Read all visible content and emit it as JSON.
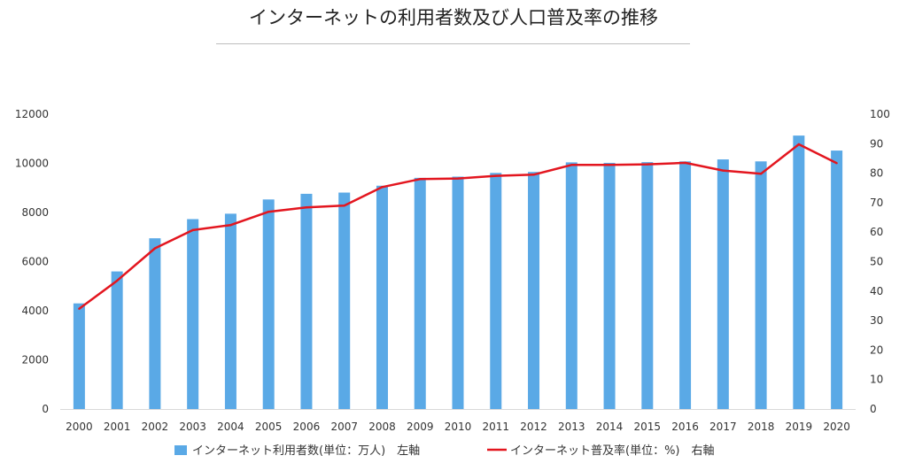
{
  "chart_data": {
    "type": "bar",
    "title": "インターネットの利用者数及び人口普及率の推移",
    "categories": [
      "2000",
      "2001",
      "2002",
      "2003",
      "2004",
      "2005",
      "2006",
      "2007",
      "2008",
      "2009",
      "2010",
      "2011",
      "2012",
      "2013",
      "2014",
      "2015",
      "2016",
      "2017",
      "2018",
      "2019",
      "2020"
    ],
    "series": [
      {
        "name": "インターネット利用者数(単位：万人)　左軸",
        "type": "bar",
        "axis": "left",
        "color": "#5aa9e6",
        "values": [
          4300,
          5600,
          6950,
          7730,
          7950,
          8530,
          8760,
          8810,
          9090,
          9410,
          9460,
          9610,
          9650,
          10040,
          10020,
          10050,
          10080,
          10160,
          10080,
          11130,
          10520
        ]
      },
      {
        "name": "インターネット普及率(単位：%)　右軸",
        "type": "line",
        "axis": "right",
        "color": "#e3161f",
        "values": [
          34.0,
          43.5,
          54.5,
          60.7,
          62.4,
          66.9,
          68.4,
          69.0,
          75.3,
          78.0,
          78.2,
          79.1,
          79.5,
          82.8,
          82.8,
          83.0,
          83.5,
          80.9,
          79.8,
          89.8,
          83.4
        ]
      }
    ],
    "ylim": [
      0,
      12000
    ],
    "yticks": [
      0,
      2000,
      4000,
      6000,
      8000,
      10000,
      12000
    ],
    "y2lim": [
      0,
      100
    ],
    "y2ticks": [
      0,
      10,
      20,
      30,
      40,
      50,
      60,
      70,
      80,
      90,
      100
    ],
    "grid": false,
    "legend": "bottom"
  }
}
